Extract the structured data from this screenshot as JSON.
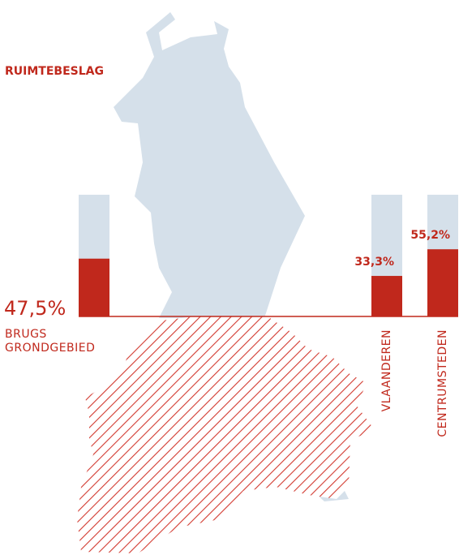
{
  "chart_data": {
    "type": "bar",
    "title": "RUIMTEBESLAG",
    "categories": [
      "BRUGS GRONDGEBIED",
      "VLAANDEREN",
      "CENTRUMSTEDEN"
    ],
    "values": [
      47.5,
      33.3,
      55.2
    ],
    "value_labels": [
      "47,5%",
      "33,3%",
      "55,2%"
    ],
    "color": "#c0281c",
    "background_color": "#d5e0ea",
    "ylim": [
      0,
      100
    ]
  }
}
